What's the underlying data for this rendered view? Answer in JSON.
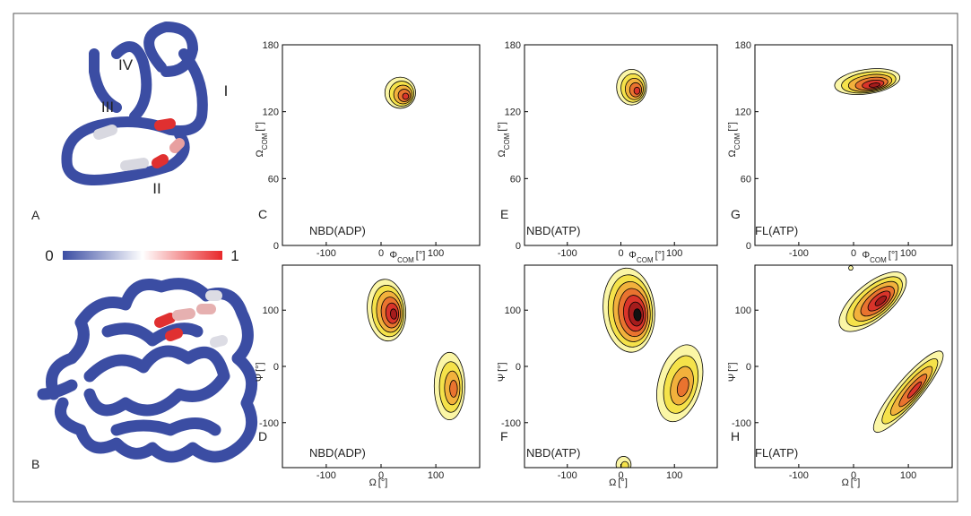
{
  "figure": {
    "panels": [
      "A",
      "B"
    ],
    "colorbar": [
      "0",
      "1"
    ],
    "helices": [
      "IV",
      "III",
      "I",
      "II"
    ]
  },
  "chart_data": [
    {
      "type": "contour",
      "panel": "C",
      "annotation": "NBD(ADP)",
      "xlabel": [
        "Φ",
        "COM",
        "[°]"
      ],
      "ylabel": [
        "Ω",
        "COM",
        "[°]"
      ],
      "xlim": [
        -180,
        180
      ],
      "ylim": [
        0,
        180
      ],
      "xticks": [
        -100,
        0,
        100
      ],
      "yticks": [
        0,
        60,
        120,
        180
      ]
    },
    {
      "type": "contour",
      "panel": "D",
      "annotation": "NBD(ADP)",
      "xlabel": [
        "Ω",
        "[°]"
      ],
      "ylabel": [
        "Ψ",
        "[°]"
      ],
      "xlim": [
        -180,
        180
      ],
      "ylim": [
        -180,
        180
      ],
      "xticks": [
        -100,
        0,
        100
      ],
      "yticks": [
        -100,
        0,
        100
      ]
    },
    {
      "type": "contour",
      "panel": "E",
      "annotation": "NBD(ATP)",
      "xlabel": [
        "Φ",
        "COM",
        "[°]"
      ],
      "ylabel": [
        "Ω",
        "COM",
        "[°]"
      ],
      "xlim": [
        -180,
        180
      ],
      "ylim": [
        0,
        180
      ],
      "xticks": [
        -100,
        0,
        100
      ],
      "yticks": [
        0,
        60,
        120,
        180
      ]
    },
    {
      "type": "contour",
      "panel": "F",
      "annotation": "NBD(ATP)",
      "xlabel": [
        "Ω",
        "[°]"
      ],
      "ylabel": [
        "Ψ",
        "[°]"
      ],
      "xlim": [
        -180,
        180
      ],
      "ylim": [
        -180,
        180
      ],
      "xticks": [
        -100,
        0,
        100
      ],
      "yticks": [
        -100,
        0,
        100
      ]
    },
    {
      "type": "contour",
      "panel": "G",
      "annotation": "FL(ATP)",
      "xlabel": [
        "Φ",
        "COM",
        "[°]"
      ],
      "ylabel": [
        "Ω",
        "COM",
        "[°]"
      ],
      "xlim": [
        -180,
        180
      ],
      "ylim": [
        0,
        180
      ],
      "xticks": [
        -100,
        0,
        100
      ],
      "yticks": [
        0,
        60,
        120,
        180
      ]
    },
    {
      "type": "contour",
      "panel": "H",
      "annotation": "FL(ATP)",
      "xlabel": [
        "Ω",
        "[°]"
      ],
      "ylabel": [
        "Ψ",
        "[°]"
      ],
      "xlim": [
        -180,
        180
      ],
      "ylim": [
        -180,
        180
      ],
      "xticks": [
        -100,
        0,
        100
      ],
      "yticks": [
        -100,
        0,
        100
      ]
    }
  ]
}
